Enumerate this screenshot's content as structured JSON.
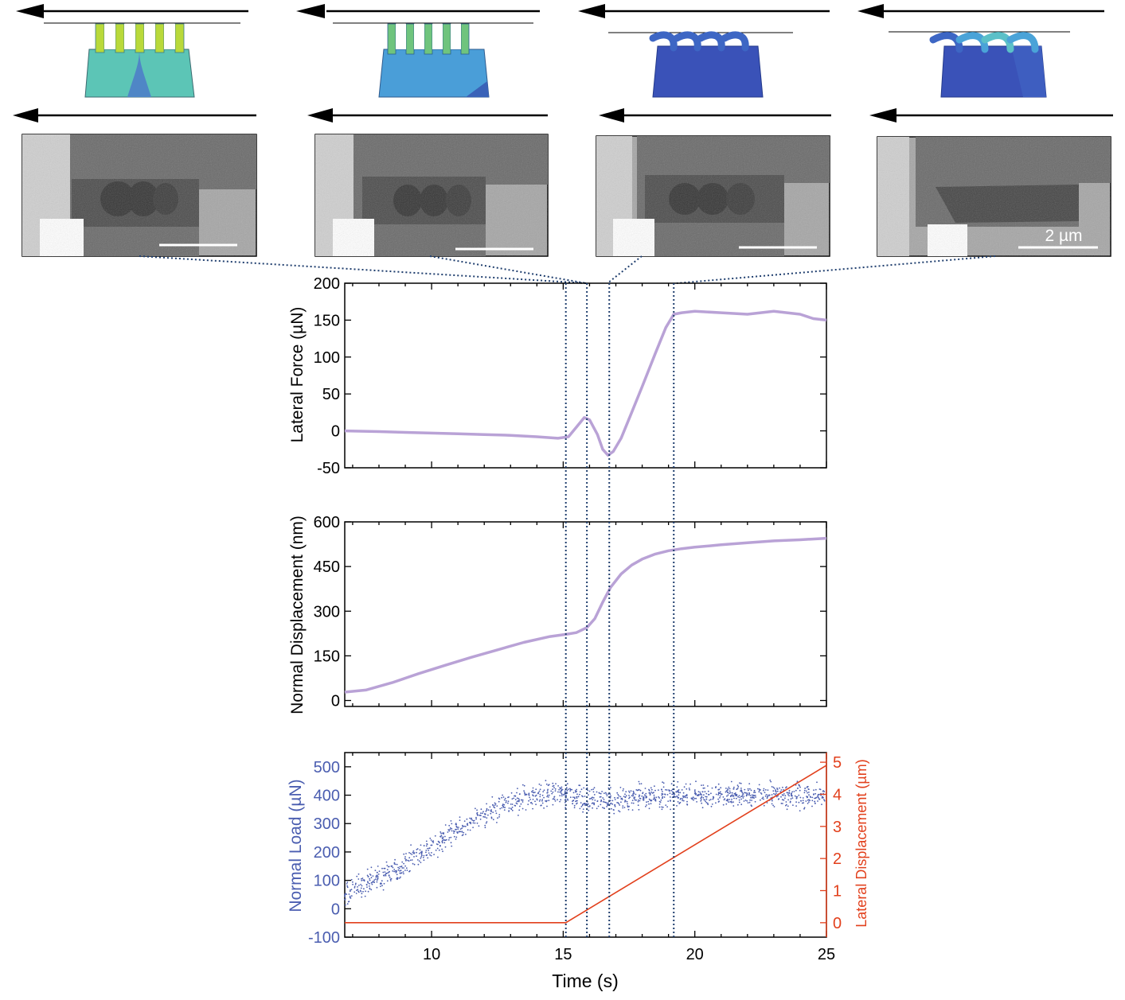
{
  "colors": {
    "lateral_force": "#b9a2d6",
    "normal_disp": "#b9a2d6",
    "normal_load": "#4a5db0",
    "lateral_disp": "#e2401c",
    "guide": "#1f3e6e",
    "axis": "#000000"
  },
  "micrograph": {
    "scale_label": "2 µm"
  },
  "x_axis": {
    "label": "Time (s)",
    "lim": [
      6.7,
      25
    ],
    "ticks": [
      "10",
      "15",
      "20",
      "25"
    ]
  },
  "chart_data": [
    {
      "type": "line",
      "ylabel": "Lateral Force (µN)",
      "ylim": [
        -50,
        200
      ],
      "yticks": [
        "-50",
        "0",
        "50",
        "100",
        "150",
        "200"
      ],
      "series": [
        {
          "x": [
            6.7,
            8,
            9,
            10,
            11,
            12,
            13,
            14,
            14.8,
            15.2,
            15.5,
            15.8,
            16.0,
            16.3,
            16.5,
            16.7,
            16.9,
            17.2,
            17.6,
            18.0,
            18.5,
            18.9,
            19.2,
            19.5,
            20,
            21,
            22,
            23,
            24,
            24.5,
            25
          ],
          "y": [
            0,
            -1,
            -2,
            -3,
            -4,
            -5,
            -6,
            -8,
            -10,
            -8,
            5,
            18,
            15,
            -5,
            -25,
            -33,
            -28,
            -10,
            25,
            60,
            105,
            140,
            158,
            160,
            162,
            160,
            158,
            162,
            158,
            152,
            150
          ]
        }
      ]
    },
    {
      "type": "line",
      "ylabel": "Normal Displacement (nm)",
      "ylim": [
        -20,
        600
      ],
      "yticks": [
        "0",
        "150",
        "300",
        "450",
        "600"
      ],
      "series": [
        {
          "x": [
            6.7,
            7.5,
            8.5,
            9.5,
            10.5,
            11.5,
            12.5,
            13.5,
            14.5,
            15.1,
            15.5,
            15.9,
            16.2,
            16.5,
            16.8,
            17.2,
            17.6,
            18.0,
            18.5,
            19.0,
            19.5,
            20,
            21,
            22,
            23,
            24,
            25
          ],
          "y": [
            28,
            35,
            60,
            90,
            118,
            145,
            170,
            195,
            215,
            222,
            228,
            245,
            275,
            330,
            380,
            425,
            455,
            475,
            492,
            503,
            510,
            515,
            523,
            530,
            536,
            540,
            545
          ]
        }
      ]
    },
    {
      "type": "scatter",
      "ylabel": "Normal Load (µN)",
      "ylabel_right": "Lateral Displacement (µm)",
      "ylim": [
        -100,
        550
      ],
      "yticks": [
        "-100",
        "0",
        "100",
        "200",
        "300",
        "400",
        "500"
      ],
      "ylim_right": [
        -0.45,
        5.3
      ],
      "yticks_right": [
        "0",
        "1",
        "2",
        "3",
        "4",
        "5"
      ],
      "series": [
        {
          "name": "Normal Load",
          "x": [
            6.7,
            8,
            9,
            10,
            11,
            12,
            13,
            14,
            15,
            15.5,
            16,
            16.5,
            17,
            18,
            19,
            20,
            21,
            22,
            23,
            24,
            25
          ],
          "y": [
            50,
            110,
            160,
            220,
            275,
            330,
            370,
            400,
            405,
            395,
            385,
            375,
            380,
            395,
            400,
            400,
            398,
            402,
            400,
            400,
            400
          ]
        },
        {
          "name": "Lateral Displacement",
          "x": [
            6.7,
            15.1,
            25
          ],
          "y": [
            0,
            0,
            4.9
          ]
        }
      ]
    }
  ],
  "snapshot_times": [
    15.1,
    15.9,
    16.75,
    19.2
  ]
}
